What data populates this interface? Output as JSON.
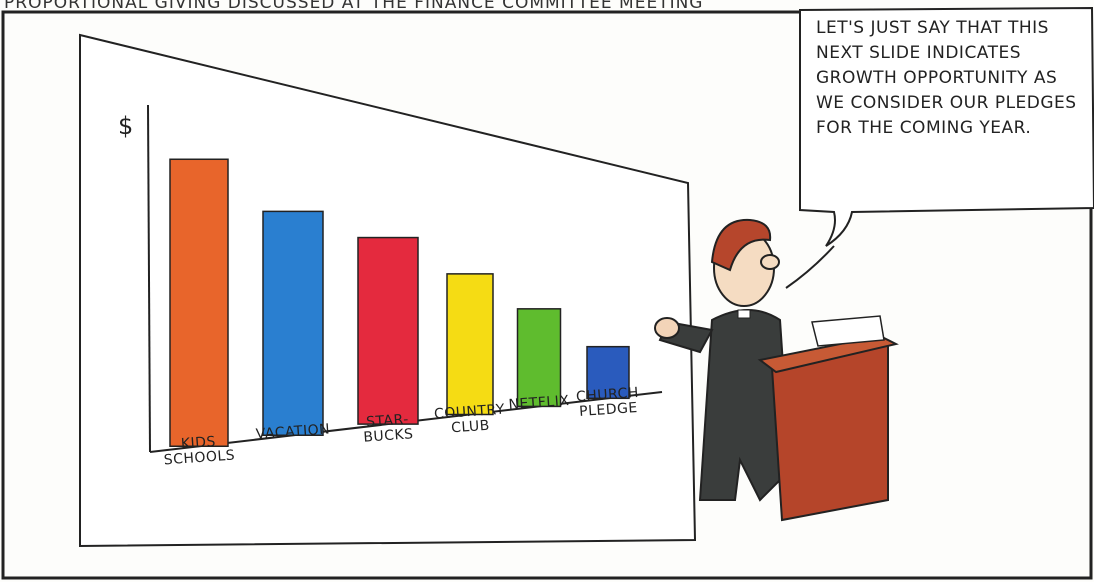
{
  "caption": "PROPORTIONAL GIVING DISCUSSED AT THE FINANCE COMMITTEE MEETING",
  "speech_bubble": "LET'S JUST SAY THAT THIS NEXT SLIDE INDICATES GROWTH OPPORTUNITY AS WE CONSIDER OUR PLEDGES FOR THE COMING YEAR.",
  "chart_data": {
    "type": "bar",
    "y_label": "$",
    "categories": [
      "KIDS\nSCHOOLS",
      "VACATION",
      "STAR-\nBUCKS",
      "COUNTRY\nCLUB",
      "NETFLIX",
      "CHURCH\nPLEDGE"
    ],
    "values": [
      100,
      78,
      65,
      49,
      34,
      18
    ],
    "colors": [
      "#e8652b",
      "#2a7fd0",
      "#e42a3e",
      "#f5dc14",
      "#5fbc2e",
      "#2a5bbd"
    ],
    "ylim": [
      0,
      105
    ]
  }
}
